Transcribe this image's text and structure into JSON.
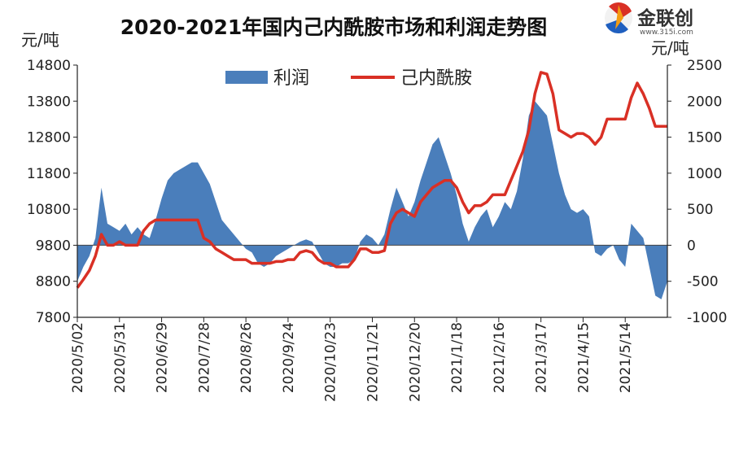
{
  "chart_data": {
    "type": "line",
    "title": "2020-2021年国内己内酰胺市场和利润走势图",
    "left_axis": {
      "unit": "元/吨",
      "min": 7800,
      "max": 14800,
      "step": 1000,
      "ticks": [
        "14800",
        "13800",
        "12800",
        "11800",
        "10800",
        "9800",
        "8800",
        "7800"
      ]
    },
    "right_axis": {
      "unit": "元/吨",
      "min": -1000,
      "max": 2500,
      "step": 500,
      "ticks": [
        "2500",
        "2000",
        "1500",
        "1000",
        "500",
        "0",
        "-500",
        "-1000"
      ]
    },
    "x_ticks": [
      "2020/5/02",
      "2020/5/31",
      "2020/6/29",
      "2020/7/28",
      "2020/8/26",
      "2020/9/24",
      "2020/10/23",
      "2020/11/21",
      "2020/12/20",
      "2021/1/18",
      "2021/2/16",
      "2021/3/17",
      "2021/4/15",
      "2021/5/14"
    ],
    "legend": {
      "area_label": "利润",
      "line_label": "己内酰胺"
    },
    "colors": {
      "profit": "#4a7ebb",
      "price": "#d93025",
      "axis": "#222222"
    },
    "series": [
      {
        "name": "利润",
        "axis": "right",
        "type": "area",
        "points": [
          [
            0,
            -500
          ],
          [
            1,
            -300
          ],
          [
            2,
            -150
          ],
          [
            3,
            100
          ],
          [
            4,
            800
          ],
          [
            5,
            300
          ],
          [
            6,
            250
          ],
          [
            7,
            200
          ],
          [
            8,
            300
          ],
          [
            9,
            150
          ],
          [
            10,
            250
          ],
          [
            11,
            150
          ],
          [
            12,
            100
          ],
          [
            13,
            350
          ],
          [
            14,
            650
          ],
          [
            15,
            900
          ],
          [
            16,
            1000
          ],
          [
            17,
            1050
          ],
          [
            18,
            1100
          ],
          [
            19,
            1150
          ],
          [
            20,
            1150
          ],
          [
            21,
            1000
          ],
          [
            22,
            850
          ],
          [
            23,
            600
          ],
          [
            24,
            350
          ],
          [
            25,
            250
          ],
          [
            26,
            150
          ],
          [
            27,
            50
          ],
          [
            28,
            -50
          ],
          [
            29,
            -100
          ],
          [
            30,
            -250
          ],
          [
            31,
            -300
          ],
          [
            32,
            -250
          ],
          [
            33,
            -150
          ],
          [
            34,
            -100
          ],
          [
            35,
            -50
          ],
          [
            36,
            0
          ],
          [
            37,
            50
          ],
          [
            38,
            80
          ],
          [
            39,
            50
          ],
          [
            40,
            -100
          ],
          [
            41,
            -250
          ],
          [
            42,
            -300
          ],
          [
            43,
            -300
          ],
          [
            44,
            -250
          ],
          [
            45,
            -250
          ],
          [
            46,
            -200
          ],
          [
            47,
            50
          ],
          [
            48,
            150
          ],
          [
            49,
            100
          ],
          [
            50,
            0
          ],
          [
            51,
            150
          ],
          [
            52,
            500
          ],
          [
            53,
            800
          ],
          [
            54,
            600
          ],
          [
            55,
            400
          ],
          [
            56,
            600
          ],
          [
            57,
            900
          ],
          [
            58,
            1150
          ],
          [
            59,
            1400
          ],
          [
            60,
            1500
          ],
          [
            61,
            1250
          ],
          [
            62,
            1000
          ],
          [
            63,
            700
          ],
          [
            64,
            300
          ],
          [
            65,
            50
          ],
          [
            66,
            250
          ],
          [
            67,
            400
          ],
          [
            68,
            500
          ],
          [
            69,
            250
          ],
          [
            70,
            400
          ],
          [
            71,
            600
          ],
          [
            72,
            500
          ],
          [
            73,
            750
          ],
          [
            74,
            1200
          ],
          [
            75,
            1800
          ],
          [
            76,
            2000
          ],
          [
            77,
            1900
          ],
          [
            78,
            1800
          ],
          [
            79,
            1400
          ],
          [
            80,
            1000
          ],
          [
            81,
            700
          ],
          [
            82,
            500
          ],
          [
            83,
            450
          ],
          [
            84,
            500
          ],
          [
            85,
            400
          ],
          [
            86,
            -100
          ],
          [
            87,
            -150
          ],
          [
            88,
            -50
          ],
          [
            89,
            0
          ],
          [
            90,
            -200
          ],
          [
            91,
            -300
          ],
          [
            92,
            300
          ],
          [
            93,
            200
          ],
          [
            94,
            100
          ],
          [
            95,
            -300
          ],
          [
            96,
            -700
          ],
          [
            97,
            -750
          ],
          [
            98,
            -500
          ]
        ]
      },
      {
        "name": "己内酰胺",
        "axis": "left",
        "type": "line",
        "points": [
          [
            0,
            8620
          ],
          [
            1,
            8850
          ],
          [
            2,
            9100
          ],
          [
            3,
            9500
          ],
          [
            4,
            10100
          ],
          [
            5,
            9800
          ],
          [
            6,
            9800
          ],
          [
            7,
            9900
          ],
          [
            8,
            9800
          ],
          [
            9,
            9800
          ],
          [
            10,
            9800
          ],
          [
            11,
            10200
          ],
          [
            12,
            10400
          ],
          [
            13,
            10500
          ],
          [
            14,
            10500
          ],
          [
            15,
            10500
          ],
          [
            16,
            10500
          ],
          [
            17,
            10500
          ],
          [
            18,
            10500
          ],
          [
            19,
            10500
          ],
          [
            20,
            10500
          ],
          [
            21,
            10000
          ],
          [
            22,
            9900
          ],
          [
            23,
            9700
          ],
          [
            24,
            9600
          ],
          [
            25,
            9500
          ],
          [
            26,
            9400
          ],
          [
            27,
            9400
          ],
          [
            28,
            9400
          ],
          [
            29,
            9300
          ],
          [
            30,
            9300
          ],
          [
            31,
            9300
          ],
          [
            32,
            9300
          ],
          [
            33,
            9350
          ],
          [
            34,
            9350
          ],
          [
            35,
            9400
          ],
          [
            36,
            9400
          ],
          [
            37,
            9600
          ],
          [
            38,
            9650
          ],
          [
            39,
            9600
          ],
          [
            40,
            9400
          ],
          [
            41,
            9300
          ],
          [
            42,
            9300
          ],
          [
            43,
            9200
          ],
          [
            44,
            9200
          ],
          [
            45,
            9200
          ],
          [
            46,
            9400
          ],
          [
            47,
            9700
          ],
          [
            48,
            9700
          ],
          [
            49,
            9600
          ],
          [
            50,
            9600
          ],
          [
            51,
            9650
          ],
          [
            52,
            10400
          ],
          [
            53,
            10700
          ],
          [
            54,
            10800
          ],
          [
            55,
            10700
          ],
          [
            56,
            10600
          ],
          [
            57,
            11000
          ],
          [
            58,
            11200
          ],
          [
            59,
            11400
          ],
          [
            60,
            11500
          ],
          [
            61,
            11600
          ],
          [
            62,
            11600
          ],
          [
            63,
            11400
          ],
          [
            64,
            11000
          ],
          [
            65,
            10700
          ],
          [
            66,
            10900
          ],
          [
            67,
            10900
          ],
          [
            68,
            11000
          ],
          [
            69,
            11200
          ],
          [
            70,
            11200
          ],
          [
            71,
            11200
          ],
          [
            72,
            11600
          ],
          [
            73,
            12000
          ],
          [
            74,
            12400
          ],
          [
            75,
            13000
          ],
          [
            76,
            14000
          ],
          [
            77,
            14600
          ],
          [
            78,
            14550
          ],
          [
            79,
            14000
          ],
          [
            80,
            13000
          ],
          [
            81,
            12900
          ],
          [
            82,
            12800
          ],
          [
            83,
            12900
          ],
          [
            84,
            12900
          ],
          [
            85,
            12800
          ],
          [
            86,
            12600
          ],
          [
            87,
            12800
          ],
          [
            88,
            13300
          ],
          [
            89,
            13300
          ],
          [
            90,
            13300
          ],
          [
            91,
            13300
          ],
          [
            92,
            13900
          ],
          [
            93,
            14300
          ],
          [
            94,
            14000
          ],
          [
            95,
            13600
          ],
          [
            96,
            13100
          ],
          [
            97,
            13100
          ],
          [
            98,
            13100
          ]
        ]
      }
    ]
  },
  "logo": {
    "name": "金联创",
    "url": "www.315i.com"
  }
}
